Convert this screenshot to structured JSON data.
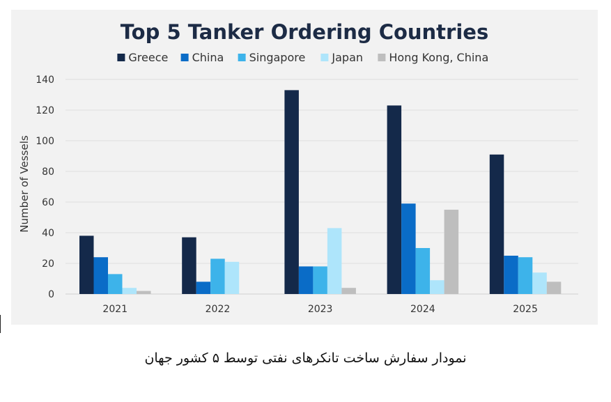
{
  "chart_data": {
    "type": "bar",
    "title": "Top 5 Tanker Ordering Countries",
    "xlabel": "",
    "ylabel": "Number of Vessels",
    "categories": [
      "2021",
      "2022",
      "2023",
      "2024",
      "2025"
    ],
    "ylim": [
      0,
      140
    ],
    "yticks": [
      0,
      20,
      40,
      60,
      80,
      100,
      120,
      140
    ],
    "grid": true,
    "legend": "top",
    "series": [
      {
        "name": "Greece",
        "color": "#14294a",
        "values": [
          38,
          37,
          133,
          123,
          91
        ]
      },
      {
        "name": "China",
        "color": "#0a6cc7",
        "values": [
          24,
          8,
          18,
          59,
          25
        ]
      },
      {
        "name": "Singapore",
        "color": "#3db3ea",
        "values": [
          13,
          23,
          18,
          30,
          24
        ]
      },
      {
        "name": "Japan",
        "color": "#aee5fb",
        "values": [
          4,
          21,
          43,
          9,
          14
        ]
      },
      {
        "name": "Hong Kong, China",
        "color": "#bebebe",
        "values": [
          2,
          0,
          4,
          55,
          8
        ]
      }
    ]
  },
  "caption": "نمودار سفارش ساخت تانکرهای نفتی توسط ۵ کشور جهان"
}
